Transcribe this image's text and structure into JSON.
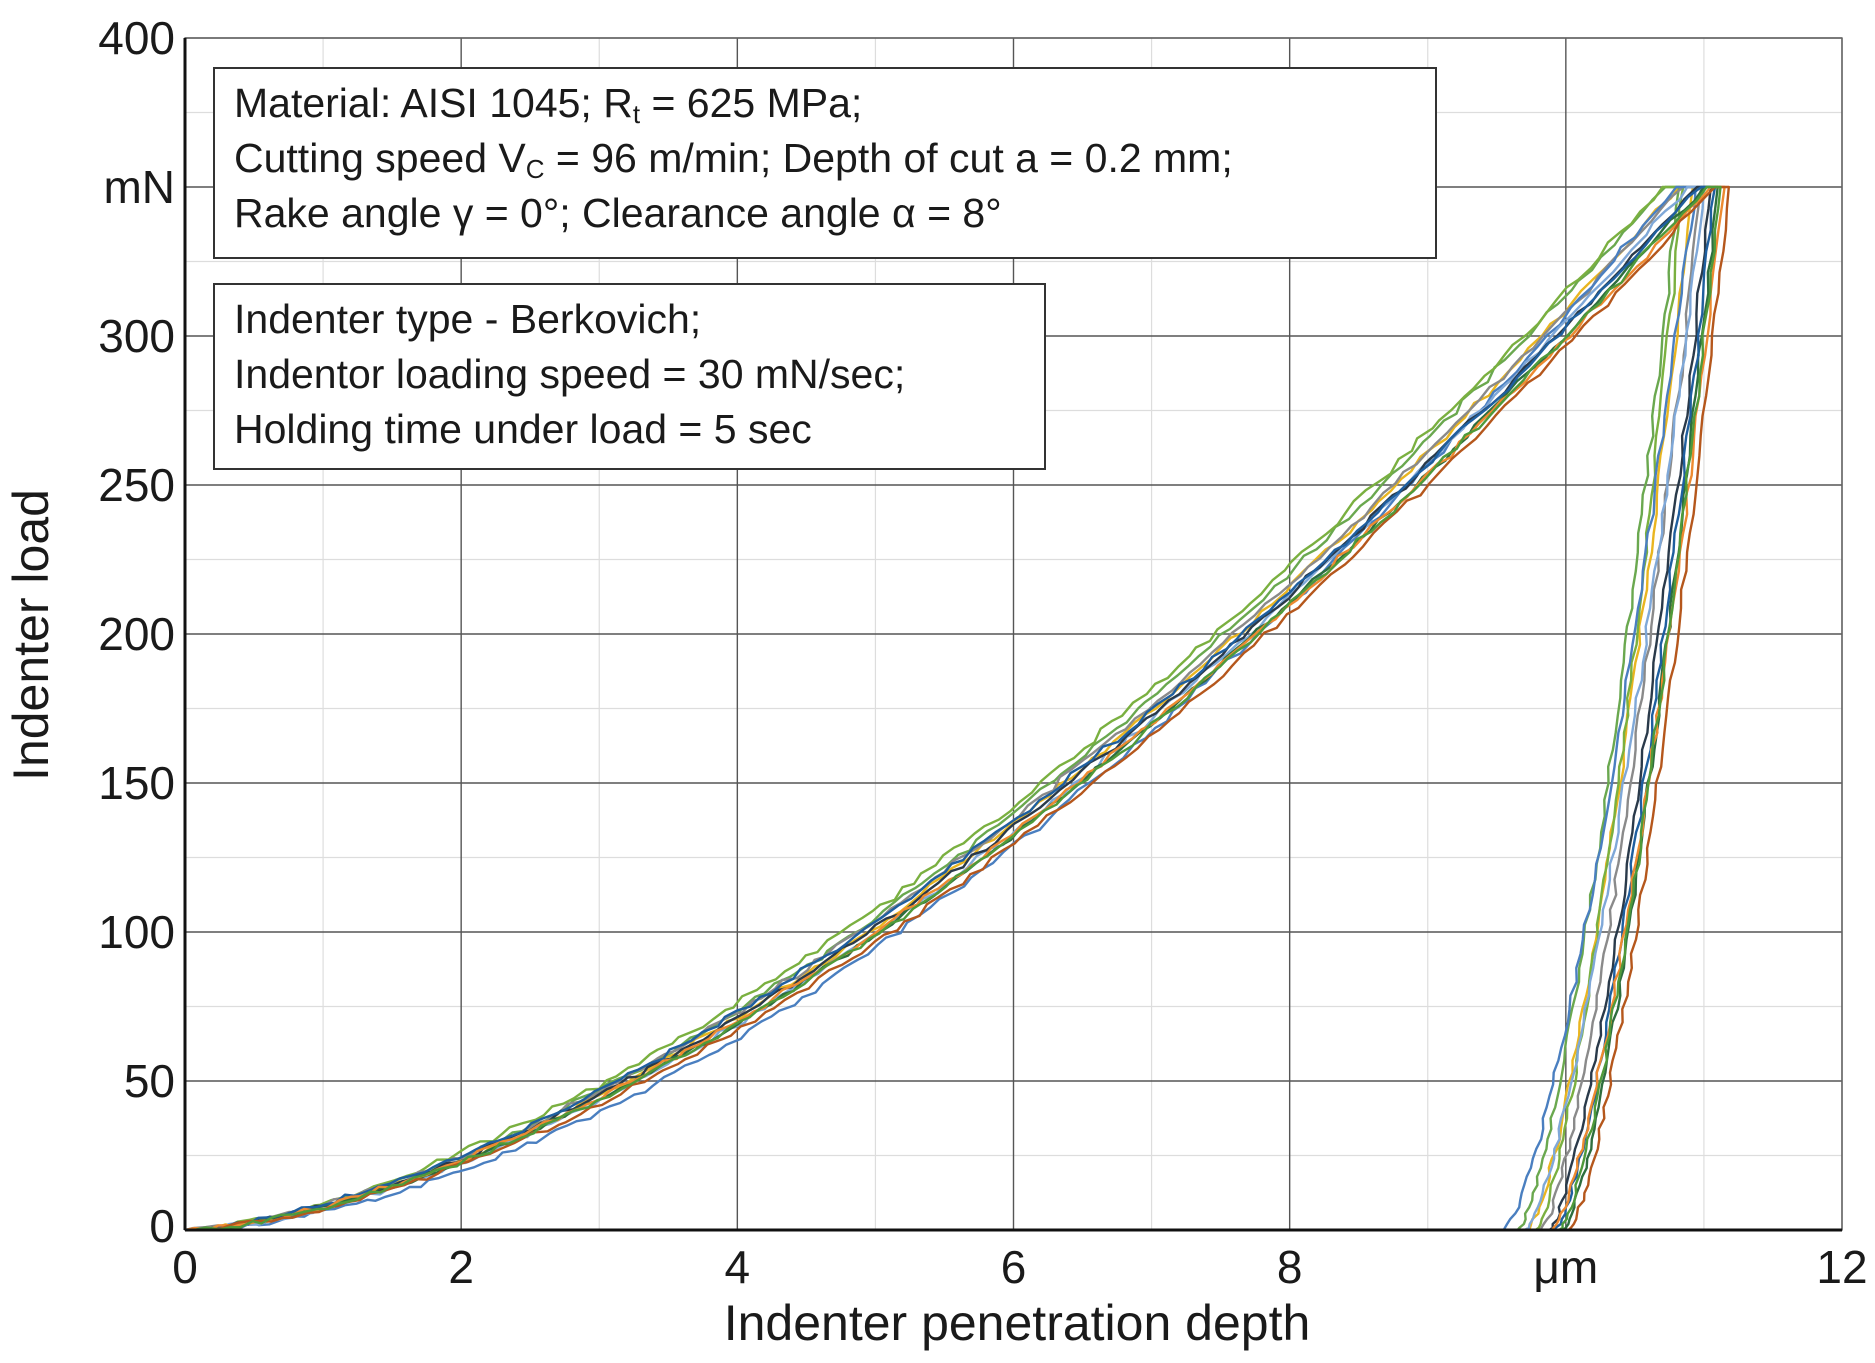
{
  "chart_data": {
    "type": "line",
    "xlabel": "Indenter penetration depth",
    "ylabel": "Indenter load",
    "xlim": [
      0,
      12
    ],
    "ylim": [
      0,
      400
    ],
    "x_ticks": [
      "0",
      "2",
      "4",
      "6",
      "8",
      "μm",
      "12"
    ],
    "y_ticks": [
      "0",
      "50",
      "100",
      "150",
      "200",
      "250",
      "300",
      "mN",
      "400"
    ],
    "x_tick_values": [
      0,
      2,
      4,
      6,
      8,
      10,
      12
    ],
    "y_tick_values": [
      0,
      50,
      100,
      150,
      200,
      250,
      300,
      350,
      400
    ],
    "grid": true,
    "annotations": [
      {
        "lines": [
          {
            "parts": [
              {
                "t": "Material: AISI 1045; R"
              },
              {
                "t": "t",
                "sub": true
              },
              {
                "t": " = 625 MPa;"
              }
            ]
          },
          {
            "parts": [
              {
                "t": "Cutting speed V"
              },
              {
                "t": "C",
                "sub": true
              },
              {
                "t": " = 96 m/min; Depth of cut a = 0.2 mm;"
              }
            ]
          },
          {
            "parts": [
              {
                "t": "Rake angle γ = 0°; Clearance angle α = 8°"
              }
            ]
          }
        ]
      },
      {
        "lines": [
          {
            "parts": [
              {
                "t": "Indenter type - Berkovich;"
              }
            ]
          },
          {
            "parts": [
              {
                "t": "Indentor loading speed = 30 mN/sec;"
              }
            ]
          },
          {
            "parts": [
              {
                "t": "Holding time under load = 5 sec"
              }
            ]
          }
        ]
      }
    ],
    "series": [
      {
        "color": "#e9b520",
        "x_max": 10.82,
        "x_hold": 10.92,
        "x_res": 9.72,
        "m": 1.6
      },
      {
        "color": "#6aa84f",
        "x_max": 10.72,
        "x_hold": 10.82,
        "x_res": 9.65,
        "m": 1.58
      },
      {
        "color": "#7ab040",
        "x_max": 10.7,
        "x_hold": 10.85,
        "x_res": 9.78,
        "m": 1.55
      },
      {
        "color": "#8a8a8a",
        "x_max": 10.85,
        "x_hold": 10.98,
        "x_res": 9.82,
        "m": 1.57
      },
      {
        "color": "#4a7fc0",
        "x_max": 10.8,
        "x_hold": 10.94,
        "x_res": 9.55,
        "m": 1.7
      },
      {
        "color": "#7fa8d8",
        "x_max": 10.88,
        "x_hold": 11.0,
        "x_res": 9.7,
        "m": 1.62
      },
      {
        "color": "#2a3a4a",
        "x_max": 10.95,
        "x_hold": 11.05,
        "x_res": 9.88,
        "m": 1.58
      },
      {
        "color": "#2e6e3e",
        "x_max": 11.0,
        "x_hold": 11.1,
        "x_res": 9.98,
        "m": 1.6
      },
      {
        "color": "#1f5f9f",
        "x_max": 10.98,
        "x_hold": 11.08,
        "x_res": 9.92,
        "m": 1.55
      },
      {
        "color": "#ed8a30",
        "x_max": 11.05,
        "x_hold": 11.15,
        "x_res": 9.9,
        "m": 1.58
      },
      {
        "color": "#b5571c",
        "x_max": 11.08,
        "x_hold": 11.18,
        "x_res": 10.02,
        "m": 1.62
      },
      {
        "color": "#4f9a3a",
        "x_max": 11.02,
        "x_hold": 11.12,
        "x_res": 9.95,
        "m": 1.6
      }
    ],
    "peak_load": 350
  }
}
